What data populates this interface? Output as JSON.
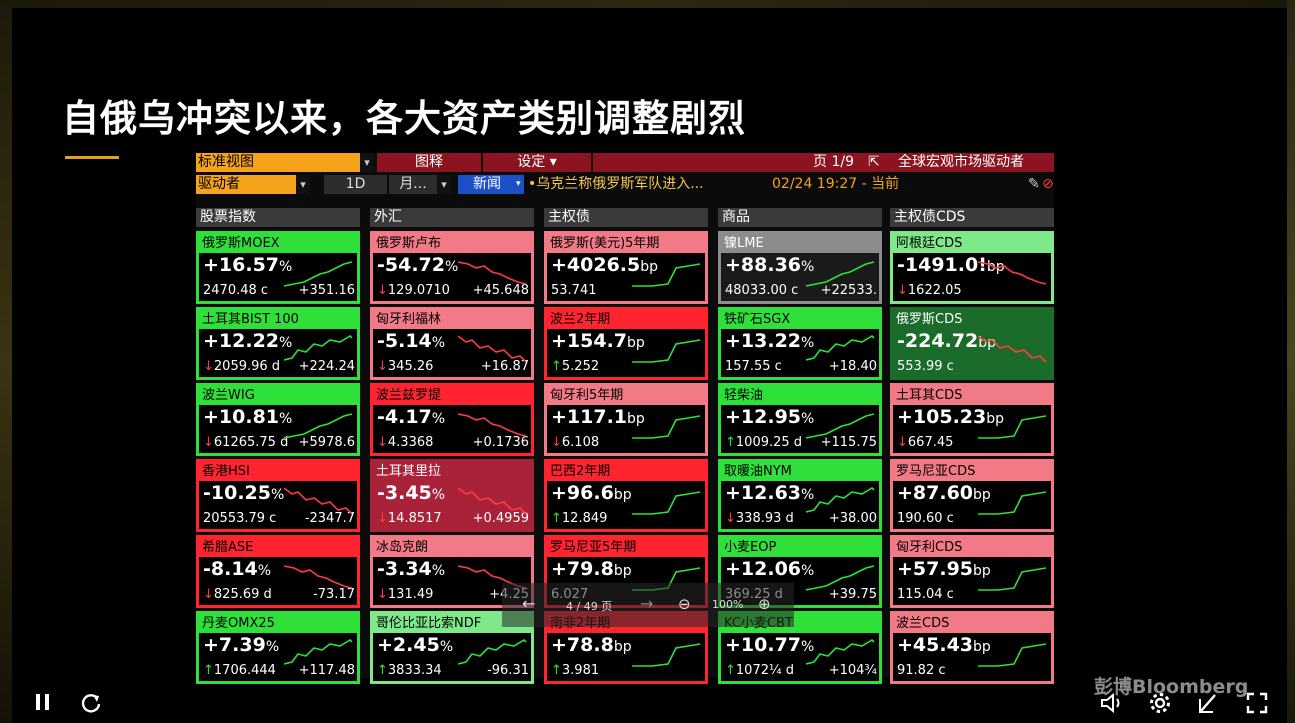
{
  "slide_title": "自俄乌冲突以来，各大资产类别调整剧烈",
  "terminal": {
    "row1": {
      "view": "标准视图",
      "legend": "图释",
      "settings": "设定 ▾",
      "page": "页 1/9",
      "monitor": "全球宏观市场驱动者"
    },
    "row2": {
      "driver": "驱动者",
      "period": "1D",
      "month": "月...",
      "news_btn": "新闻",
      "news": "•乌克兰称俄罗斯军队进入...",
      "time": "02/24 19:27 - 当前"
    },
    "columns": [
      "股票指数",
      "外汇",
      "主权债",
      "商品",
      "主权债CDS"
    ]
  },
  "tiles": [
    [
      {
        "name": "俄罗斯MOEX",
        "value": "+16.57",
        "unit": "%",
        "level": "2470.48 c",
        "change": "+351.16",
        "dir": "",
        "style": "g"
      },
      {
        "name": "土耳其BIST 100",
        "value": "+12.22",
        "unit": "%",
        "level": "2059.96 d",
        "change": "+224.24",
        "dir": "down",
        "style": "g"
      },
      {
        "name": "波兰WIG",
        "value": "+10.81",
        "unit": "%",
        "level": "61265.75 d",
        "change": "+5978.6",
        "dir": "down",
        "style": "g"
      },
      {
        "name": "香港HSI",
        "value": "-10.25",
        "unit": "%",
        "level": "20553.79 c",
        "change": "-2347.7",
        "dir": "",
        "style": "r"
      },
      {
        "name": "希腊ASE",
        "value": "-8.14",
        "unit": "%",
        "level": "825.69 d",
        "change": "-73.17",
        "dir": "down",
        "style": "r"
      },
      {
        "name": "丹麦OMX25",
        "value": "+7.39",
        "unit": "%",
        "level": "1706.444",
        "change": "+117.48",
        "dir": "up",
        "style": "g"
      }
    ],
    [
      {
        "name": "俄罗斯卢布",
        "value": "-54.72",
        "unit": "%",
        "level": "129.0710",
        "change": "+45.648",
        "dir": "down",
        "style": "pr"
      },
      {
        "name": "匈牙利福林",
        "value": "-5.14",
        "unit": "%",
        "level": "345.26",
        "change": "+16.87",
        "dir": "down",
        "style": "pr"
      },
      {
        "name": "波兰兹罗提",
        "value": "-4.17",
        "unit": "%",
        "level": "4.3368",
        "change": "+0.1736",
        "dir": "down",
        "style": "r"
      },
      {
        "name": "土耳其里拉",
        "value": "-3.45",
        "unit": "%",
        "level": "14.8517",
        "change": "+0.4959",
        "dir": "down",
        "style": "dr"
      },
      {
        "name": "冰岛克朗",
        "value": "-3.34",
        "unit": "%",
        "level": "131.49",
        "change": "+4.25",
        "dir": "down",
        "style": "pr"
      },
      {
        "name": "哥伦比亚比索NDF",
        "value": "+2.45",
        "unit": "%",
        "level": "3833.34",
        "change": "-96.31",
        "dir": "up",
        "style": "pg"
      }
    ],
    [
      {
        "name": "俄罗斯(美元)5年期",
        "value": "+4026.5",
        "unit": "bp",
        "level": "53.741",
        "change": "",
        "dir": "",
        "style": "pr"
      },
      {
        "name": "波兰2年期",
        "value": "+154.7",
        "unit": "bp",
        "level": "5.252",
        "change": "",
        "dir": "up",
        "style": "r"
      },
      {
        "name": "匈牙利5年期",
        "value": "+117.1",
        "unit": "bp",
        "level": "6.108",
        "change": "",
        "dir": "down",
        "style": "pr"
      },
      {
        "name": "巴西2年期",
        "value": "+96.6",
        "unit": "bp",
        "level": "12.849",
        "change": "",
        "dir": "up",
        "style": "r"
      },
      {
        "name": "罗马尼亚5年期",
        "value": "+79.8",
        "unit": "bp",
        "level": "6.027",
        "change": "",
        "dir": "",
        "style": "r"
      },
      {
        "name": "南非2年期",
        "value": "+78.8",
        "unit": "bp",
        "level": "3.981",
        "change": "",
        "dir": "up",
        "style": "r"
      }
    ],
    [
      {
        "name": "镍LME",
        "value": "+88.36",
        "unit": "%",
        "level": "48033.00 c",
        "change": "+22533.",
        "dir": "",
        "style": "gy"
      },
      {
        "name": "铁矿石SGX",
        "value": "+13.22",
        "unit": "%",
        "level": "157.55 c",
        "change": "+18.40",
        "dir": "",
        "style": "g"
      },
      {
        "name": "轻柴油",
        "value": "+12.95",
        "unit": "%",
        "level": "1009.25 d",
        "change": "+115.75",
        "dir": "up",
        "style": "g"
      },
      {
        "name": "取暖油NYM",
        "value": "+12.63",
        "unit": "%",
        "level": "338.93 d",
        "change": "+38.00",
        "dir": "down",
        "style": "g"
      },
      {
        "name": "小麦EOP",
        "value": "+12.06",
        "unit": "%",
        "level": "369.25 d",
        "change": "+39.75",
        "dir": "",
        "style": "g"
      },
      {
        "name": "KC小麦CBT",
        "value": "+10.77",
        "unit": "%",
        "level": "1072¼ d",
        "change": "+104¾",
        "dir": "up",
        "style": "g"
      }
    ],
    [
      {
        "name": "阿根廷CDS",
        "value": "-1491.0!",
        "unit": "bp",
        "level": "1622.05",
        "change": "",
        "dir": "down",
        "style": "pg"
      },
      {
        "name": "俄罗斯CDS",
        "value": "-224.72",
        "unit": "bp",
        "level": "553.99 c",
        "change": "",
        "dir": "",
        "style": "dg"
      },
      {
        "name": "土耳其CDS",
        "value": "+105.23",
        "unit": "bp",
        "level": "667.45",
        "change": "",
        "dir": "down",
        "style": "pr"
      },
      {
        "name": "罗马尼亚CDS",
        "value": "+87.60",
        "unit": "bp",
        "level": "190.60 c",
        "change": "",
        "dir": "",
        "style": "pr"
      },
      {
        "name": "匈牙利CDS",
        "value": "+57.95",
        "unit": "bp",
        "level": "115.04 c",
        "change": "",
        "dir": "",
        "style": "pr"
      },
      {
        "name": "波兰CDS",
        "value": "+45.43",
        "unit": "bp",
        "level": "91.82 c",
        "change": "",
        "dir": "",
        "style": "pr"
      }
    ]
  ],
  "viewer": {
    "page": "4 / 49 页",
    "zoom": "100%"
  },
  "logo": "彭博Bloomberg",
  "icons": [
    "pause-icon",
    "refresh-icon",
    "volume-icon",
    "settings-icon",
    "annotate-icon",
    "fullscreen-icon"
  ]
}
